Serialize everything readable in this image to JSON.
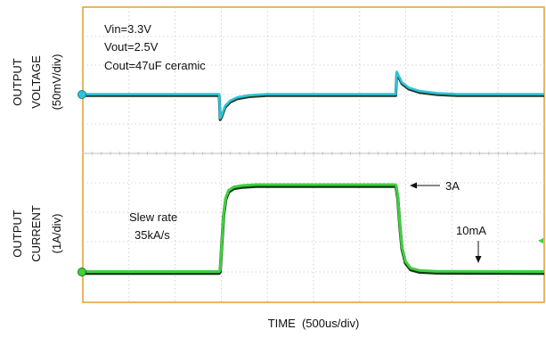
{
  "chart_data": {
    "type": "line",
    "ylabel_top": [
      "OUTPUT",
      "VOLTAGE",
      "(50mV/div)"
    ],
    "ylabel_bottom": [
      "OUTPUT",
      "CURRENT",
      "(1A/div)"
    ],
    "xlabel": "TIME  (500us/div)",
    "grid": true,
    "grid_divisions": {
      "x": 10,
      "y": 8
    },
    "conditions": [
      "Vin=3.3V",
      "Vout=2.5V",
      "Cout=47uF ceramic"
    ],
    "annotations": {
      "slew": [
        "Slew rate",
        "35kA/s"
      ],
      "high_level": "3A",
      "low_level": "10mA"
    },
    "x_range_div": [
      0,
      10
    ],
    "series": [
      {
        "color": "#2ec4d6",
        "shadow_color": "#1f3b2b",
        "description_units": "div",
        "points": [
          [
            0.0,
            6.0
          ],
          [
            3.9,
            6.0
          ],
          [
            3.93,
            6.0
          ],
          [
            3.96,
            5.55
          ],
          [
            4.0,
            5.6
          ],
          [
            4.1,
            5.78
          ],
          [
            4.25,
            5.88
          ],
          [
            4.45,
            5.94
          ],
          [
            4.8,
            5.98
          ],
          [
            5.3,
            6.0
          ],
          [
            9.0,
            6.0
          ],
          [
            9.02,
            6.0
          ],
          [
            9.05,
            6.42
          ],
          [
            9.08,
            6.38
          ],
          [
            9.2,
            6.22
          ],
          [
            9.4,
            6.12
          ],
          [
            9.7,
            6.06
          ],
          [
            10.2,
            6.02
          ],
          [
            10.8,
            6.0
          ],
          [
            13.3,
            6.0
          ]
        ]
      },
      {
        "color": "#3fcf3f",
        "shadow_color": "#103a10",
        "description_units": "div",
        "points": [
          [
            0.0,
            0.0
          ],
          [
            3.93,
            0.0
          ],
          [
            3.96,
            0.05
          ],
          [
            4.0,
            0.9
          ],
          [
            4.06,
            2.0
          ],
          [
            4.12,
            2.55
          ],
          [
            4.2,
            2.8
          ],
          [
            4.35,
            2.92
          ],
          [
            4.6,
            2.97
          ],
          [
            5.0,
            3.0
          ],
          [
            9.0,
            3.0
          ],
          [
            9.03,
            2.98
          ],
          [
            9.08,
            2.6
          ],
          [
            9.14,
            1.6
          ],
          [
            9.2,
            0.85
          ],
          [
            9.3,
            0.35
          ],
          [
            9.45,
            0.12
          ],
          [
            9.7,
            0.04
          ],
          [
            10.2,
            0.01
          ],
          [
            13.3,
            0.0
          ]
        ]
      }
    ],
    "markers": {
      "voltage_ground": {
        "color": "#2ec4d6"
      },
      "current_ground": {
        "color": "#3fcf3f"
      },
      "trigger": {
        "color": "#3fcf3f"
      }
    }
  }
}
